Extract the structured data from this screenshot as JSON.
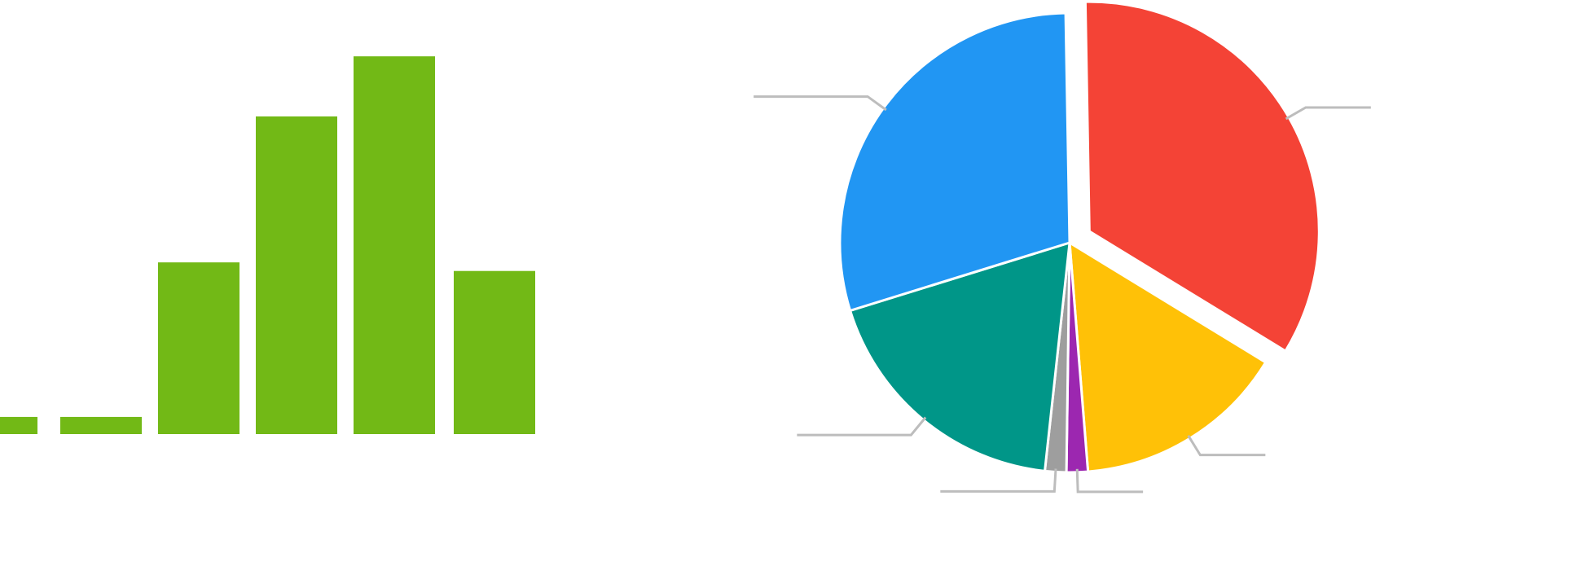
{
  "chart_data": [
    {
      "type": "bar",
      "categories": [
        "",
        "",
        "",
        "",
        "",
        ""
      ],
      "values": [
        1,
        1,
        10,
        18.5,
        22,
        9.5
      ],
      "ylim": [
        0,
        24
      ],
      "colors": {
        "bar": "#72B916"
      },
      "grid": false,
      "legend": "none"
    },
    {
      "type": "pie",
      "slices": [
        {
          "label": "",
          "value": 34.0,
          "color": "#F44336",
          "exploded": true
        },
        {
          "label": "",
          "value": 15.0,
          "color": "#FFC107",
          "exploded": false
        },
        {
          "label": "",
          "value": 1.5,
          "color": "#9C27B0",
          "exploded": false
        },
        {
          "label": "",
          "value": 1.5,
          "color": "#9E9E9E",
          "exploded": false
        },
        {
          "label": "",
          "value": 18.5,
          "color": "#009688",
          "exploded": false
        },
        {
          "label": "",
          "value": 29.5,
          "color": "#2196F3",
          "exploded": false
        }
      ],
      "colors": {
        "leader_line": "#BDBDBD"
      },
      "legend": "none"
    }
  ]
}
